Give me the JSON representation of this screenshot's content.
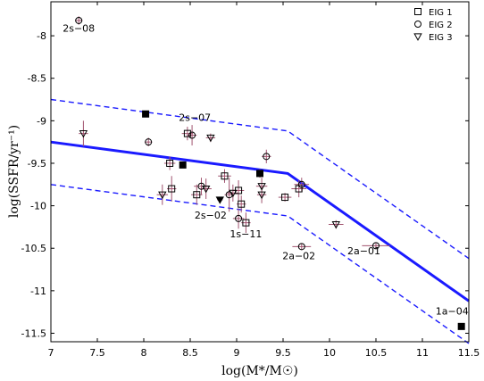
{
  "chart_data": {
    "type": "scatter",
    "xlabel": "log(M*/M☉)",
    "ylabel": "log(SSFR/yr⁻¹)",
    "xlim": [
      7,
      11.5
    ],
    "ylim": [
      -11.6,
      -7.6
    ],
    "x_ticks": [
      "7",
      "7.5",
      "8",
      "8.5",
      "9",
      "9.5",
      "10",
      "10.5",
      "11",
      "11.5"
    ],
    "y_ticks": [
      "-8",
      "-8.5",
      "-9",
      "-9.5",
      "-10",
      "-10.5",
      "-11",
      "-11.5"
    ],
    "grid": false,
    "legend_position": "top-right",
    "legend": [
      {
        "marker": "square",
        "label": "EIG 1"
      },
      {
        "marker": "circle",
        "label": "EIG 2"
      },
      {
        "marker": "triangle-down",
        "label": "EIG 3"
      }
    ],
    "main_line": [
      [
        7,
        -9.25
      ],
      [
        9.55,
        -9.62
      ],
      [
        11.5,
        -11.12
      ]
    ],
    "upper_dashed": [
      [
        7,
        -8.75
      ],
      [
        9.55,
        -9.12
      ],
      [
        11.5,
        -10.62
      ]
    ],
    "lower_dashed": [
      [
        7,
        -9.75
      ],
      [
        9.55,
        -10.12
      ],
      [
        11.5,
        -11.62
      ]
    ],
    "points": [
      {
        "x": 7.3,
        "y": -7.82,
        "m": "circle",
        "ex": 0.04,
        "ey": 0.05
      },
      {
        "x": 7.35,
        "y": -9.15,
        "m": "triangle-down",
        "ex": 0.05,
        "ey": 0.15
      },
      {
        "x": 8.02,
        "y": -8.92,
        "m": "square-filled",
        "ex": 0.03,
        "ey": 0.03
      },
      {
        "x": 8.05,
        "y": -9.25,
        "m": "circle",
        "ex": 0.04,
        "ey": 0.05
      },
      {
        "x": 8.2,
        "y": -9.87,
        "m": "triangle-down",
        "ex": 0.06,
        "ey": 0.12
      },
      {
        "x": 8.28,
        "y": -9.5,
        "m": "square",
        "ex": 0.06,
        "ey": 0.08
      },
      {
        "x": 8.3,
        "y": -9.8,
        "m": "square",
        "ex": 0.05,
        "ey": 0.15
      },
      {
        "x": 8.42,
        "y": -9.52,
        "m": "square-filled",
        "ex": 0.03,
        "ey": 0.03
      },
      {
        "x": 8.47,
        "y": -9.15,
        "m": "square",
        "ex": 0.06,
        "ey": 0.08
      },
      {
        "x": 8.52,
        "y": -9.17,
        "m": "circle",
        "ex": 0.05,
        "ey": 0.12
      },
      {
        "x": 8.57,
        "y": -9.87,
        "m": "square",
        "ex": 0.06,
        "ey": 0.12
      },
      {
        "x": 8.62,
        "y": -9.77,
        "m": "circle",
        "ex": 0.08,
        "ey": 0.1
      },
      {
        "x": 8.67,
        "y": -9.8,
        "m": "triangle-down",
        "ex": 0.06,
        "ey": 0.12
      },
      {
        "x": 8.72,
        "y": -9.2,
        "m": "triangle-down",
        "ex": 0.05,
        "ey": 0.05
      },
      {
        "x": 8.82,
        "y": -9.93,
        "m": "triangle-down-filled",
        "ex": 0.03,
        "ey": 0.03
      },
      {
        "x": 8.87,
        "y": -9.65,
        "m": "square",
        "ex": 0.07,
        "ey": 0.08
      },
      {
        "x": 8.92,
        "y": -9.87,
        "m": "circle",
        "ex": 0.05,
        "ey": 0.2
      },
      {
        "x": 8.96,
        "y": -9.85,
        "m": "triangle-down",
        "ex": 0.06,
        "ey": 0.1
      },
      {
        "x": 9.02,
        "y": -9.82,
        "m": "square",
        "ex": 0.06,
        "ey": 0.12
      },
      {
        "x": 9.02,
        "y": -10.15,
        "m": "circle",
        "ex": 0.06,
        "ey": 0.12
      },
      {
        "x": 9.05,
        "y": -9.98,
        "m": "square",
        "ex": 0.05,
        "ey": 0.1
      },
      {
        "x": 9.1,
        "y": -10.2,
        "m": "square",
        "ex": 0.05,
        "ey": 0.12
      },
      {
        "x": 9.25,
        "y": -9.62,
        "m": "square-filled",
        "ex": 0.03,
        "ey": 0.05
      },
      {
        "x": 9.27,
        "y": -9.77,
        "m": "triangle-down",
        "ex": 0.06,
        "ey": 0.1
      },
      {
        "x": 9.27,
        "y": -9.87,
        "m": "triangle-down",
        "ex": 0.05,
        "ey": 0.1
      },
      {
        "x": 9.32,
        "y": -9.42,
        "m": "circle",
        "ex": 0.05,
        "ey": 0.08
      },
      {
        "x": 9.52,
        "y": -9.9,
        "m": "square",
        "ex": 0.07,
        "ey": 0.05
      },
      {
        "x": 9.67,
        "y": -9.8,
        "m": "square",
        "ex": 0.08,
        "ey": 0.1
      },
      {
        "x": 9.7,
        "y": -9.75,
        "m": "circle",
        "ex": 0.08,
        "ey": 0.08
      },
      {
        "x": 9.7,
        "y": -10.48,
        "m": "circle",
        "ex": 0.1,
        "ey": 0.04
      },
      {
        "x": 10.07,
        "y": -10.22,
        "m": "triangle-down",
        "ex": 0.08,
        "ey": 0.05
      },
      {
        "x": 10.5,
        "y": -10.47,
        "m": "circle",
        "ex": 0.15,
        "ey": 0.03
      },
      {
        "x": 11.42,
        "y": -11.42,
        "m": "square-filled",
        "ex": 0.03,
        "ey": 0.03
      }
    ],
    "annotations": [
      {
        "text": "2s−08",
        "x": 7.3,
        "y": -7.95
      },
      {
        "text": "2s−07",
        "x": 8.55,
        "y": -9.0
      },
      {
        "text": "2s−02",
        "x": 8.72,
        "y": -10.15
      },
      {
        "text": "1s−11",
        "x": 9.1,
        "y": -10.37
      },
      {
        "text": "2a−02",
        "x": 9.67,
        "y": -10.63
      },
      {
        "text": "2a−01",
        "x": 10.37,
        "y": -10.57
      },
      {
        "text": "1a−04",
        "x": 11.32,
        "y": -11.28
      }
    ],
    "colors": {
      "line": "#1a1aff",
      "error": "#a0526e",
      "marker": "#000000"
    }
  }
}
